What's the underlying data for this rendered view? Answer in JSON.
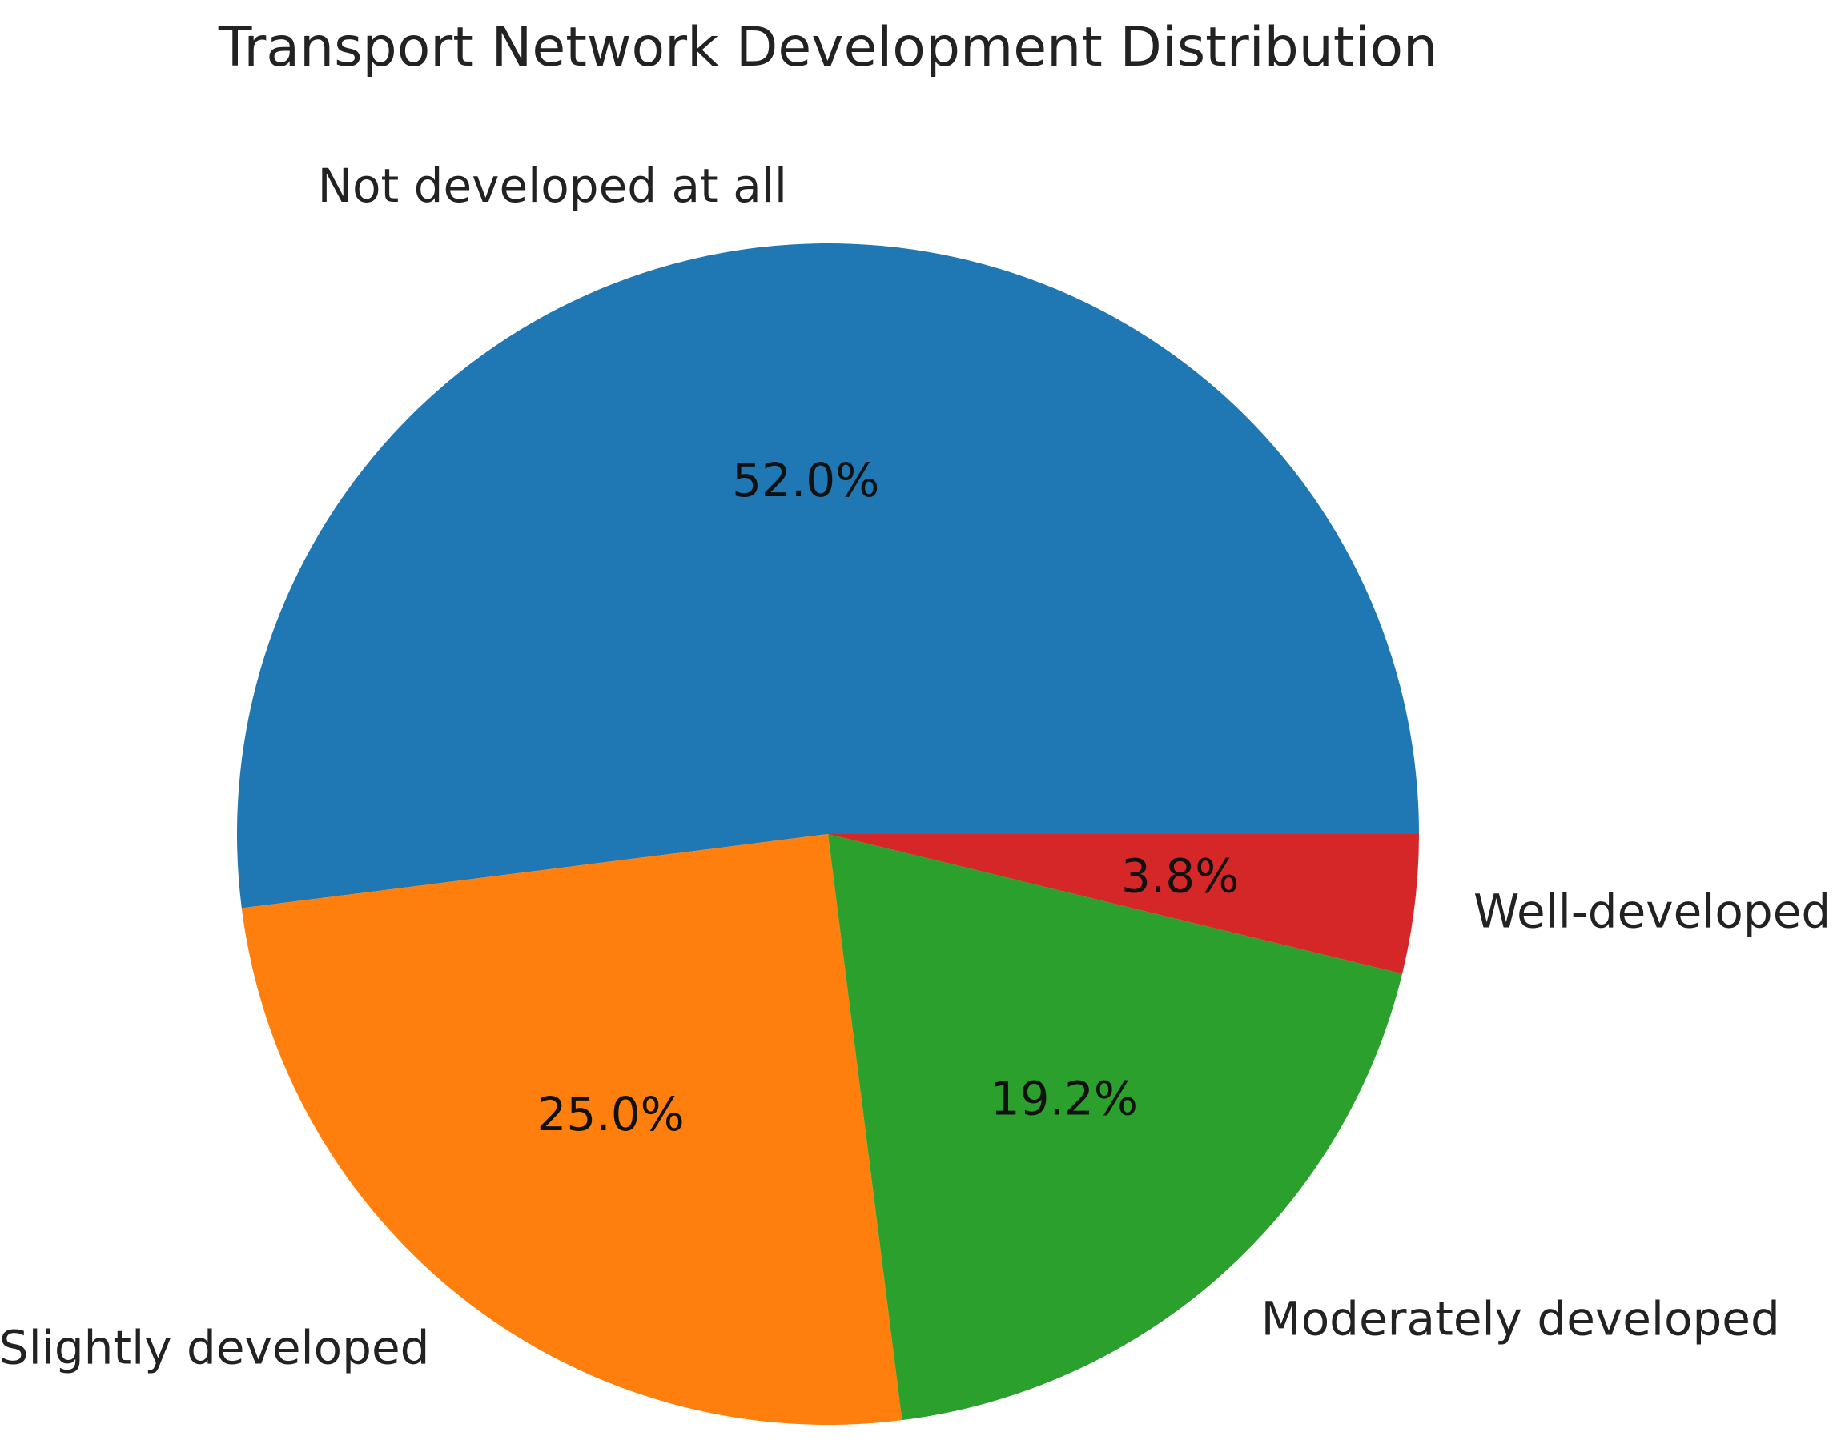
{
  "chart_data": {
    "type": "pie",
    "title": "Transport Network Development Distribution",
    "slices": [
      {
        "label": "Not developed at all",
        "value": 52.0,
        "pct_label": "52.0%",
        "color": "#1f77b4"
      },
      {
        "label": "Slightly developed",
        "value": 25.0,
        "pct_label": "25.0%",
        "color": "#ff7f0e"
      },
      {
        "label": "Moderately developed",
        "value": 19.2,
        "pct_label": "19.2%",
        "color": "#2ca02c"
      },
      {
        "label": "Well-developed",
        "value": 3.8,
        "pct_label": "3.8%",
        "color": "#d62728"
      }
    ],
    "start_angle_deg": 0,
    "direction": "counterclockwise"
  }
}
